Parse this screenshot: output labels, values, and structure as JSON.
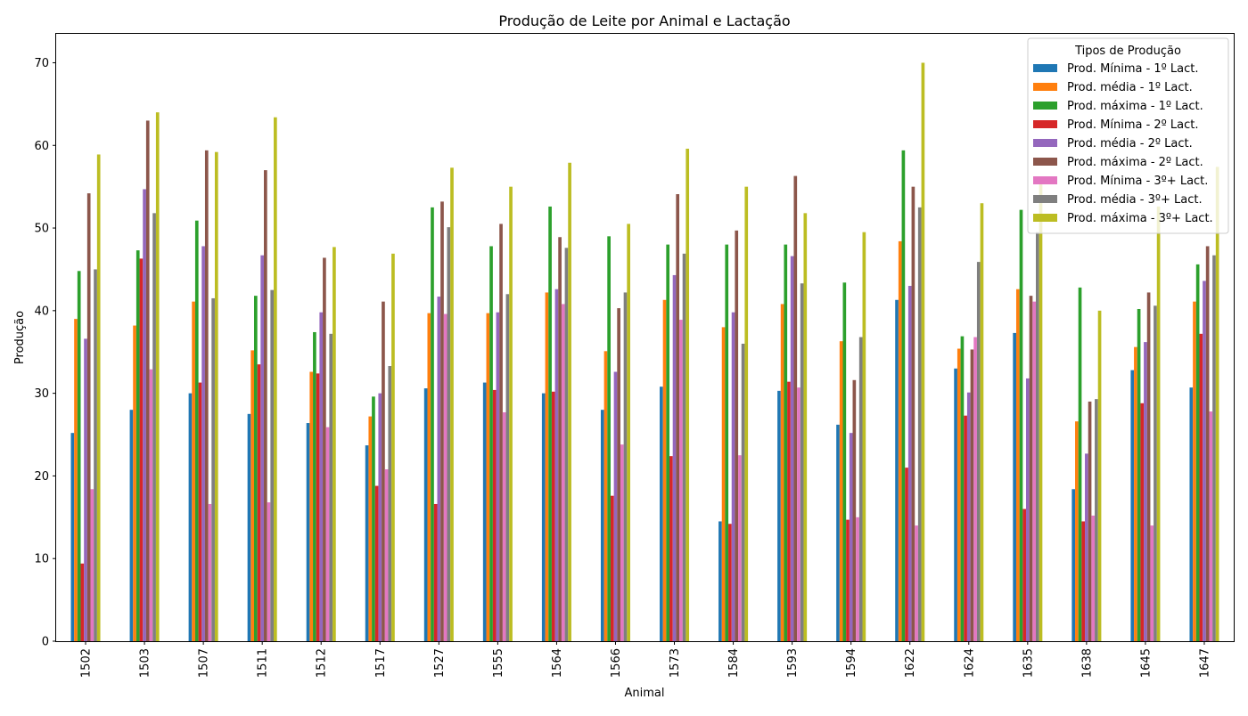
{
  "chart_data": {
    "type": "bar",
    "title": "Produção de Leite por Animal e Lactação",
    "xlabel": "Animal",
    "ylabel": "Produção",
    "ylim": [
      0,
      73.5
    ],
    "yticks": [
      0,
      10,
      20,
      30,
      40,
      50,
      60,
      70
    ],
    "grid": false,
    "legend": {
      "title": "Tipos de Produção",
      "placement": "top-right"
    },
    "categories": [
      "1502",
      "1503",
      "1507",
      "1511",
      "1512",
      "1517",
      "1527",
      "1555",
      "1564",
      "1566",
      "1573",
      "1584",
      "1593",
      "1594",
      "1622",
      "1624",
      "1635",
      "1638",
      "1645",
      "1647"
    ],
    "series": [
      {
        "name": "Prod. Mínima - 1º Lact.",
        "color": "#1f77b4",
        "values": [
          25.2,
          28.0,
          30.0,
          27.5,
          26.4,
          23.7,
          30.6,
          31.3,
          30.0,
          28.0,
          30.8,
          14.5,
          30.3,
          26.2,
          41.3,
          33.0,
          37.3,
          18.4,
          32.8,
          30.7
        ]
      },
      {
        "name": "Prod. média - 1º Lact.",
        "color": "#ff7f0e",
        "values": [
          39.0,
          38.2,
          41.1,
          35.2,
          32.6,
          27.2,
          39.7,
          39.7,
          42.2,
          35.1,
          41.3,
          38.0,
          40.8,
          36.3,
          48.4,
          35.4,
          42.6,
          26.6,
          35.6,
          41.1
        ]
      },
      {
        "name": "Prod. máxima - 1º Lact.",
        "color": "#2ca02c",
        "values": [
          44.8,
          47.3,
          50.9,
          41.8,
          37.4,
          29.6,
          52.5,
          47.8,
          52.6,
          49.0,
          48.0,
          48.0,
          48.0,
          43.4,
          59.4,
          36.9,
          52.2,
          42.8,
          40.2,
          45.6
        ]
      },
      {
        "name": "Prod. Mínima - 2º Lact.",
        "color": "#d62728",
        "values": [
          9.4,
          46.3,
          31.3,
          33.5,
          32.4,
          18.8,
          16.6,
          30.4,
          30.2,
          17.6,
          22.4,
          14.2,
          31.4,
          14.7,
          21.0,
          27.3,
          16.0,
          14.5,
          28.8,
          37.2
        ]
      },
      {
        "name": "Prod. média - 2º Lact.",
        "color": "#9467bd",
        "values": [
          36.6,
          54.7,
          47.8,
          46.7,
          39.8,
          30.0,
          41.7,
          39.8,
          42.6,
          32.6,
          44.3,
          39.8,
          46.6,
          25.2,
          43.0,
          30.1,
          31.8,
          22.7,
          36.2,
          43.6
        ]
      },
      {
        "name": "Prod. máxima - 2º Lact.",
        "color": "#8c564b",
        "values": [
          54.2,
          63.0,
          59.4,
          57.0,
          46.4,
          41.1,
          53.2,
          50.5,
          48.9,
          40.3,
          54.1,
          49.7,
          56.3,
          31.6,
          55.0,
          35.3,
          41.8,
          29.0,
          42.2,
          47.8
        ]
      },
      {
        "name": "Prod. Mínima - 3º+ Lact.",
        "color": "#e377c2",
        "values": [
          18.4,
          32.9,
          16.6,
          16.8,
          25.9,
          20.8,
          39.6,
          27.7,
          40.8,
          23.8,
          38.9,
          22.5,
          30.7,
          15.0,
          14.0,
          36.8,
          41.1,
          15.2,
          14.0,
          27.8
        ]
      },
      {
        "name": "Prod. média - 3º+ Lact.",
        "color": "#7f7f7f",
        "values": [
          45.0,
          51.8,
          41.5,
          42.5,
          37.2,
          33.3,
          50.1,
          42.0,
          47.6,
          42.2,
          46.9,
          36.0,
          43.3,
          36.8,
          52.5,
          45.9,
          49.5,
          29.3,
          40.6,
          46.7
        ]
      },
      {
        "name": "Prod. máxima - 3º+ Lact.",
        "color": "#bcbd22",
        "values": [
          58.9,
          64.0,
          59.2,
          63.4,
          47.7,
          46.9,
          57.3,
          55.0,
          57.9,
          50.5,
          59.6,
          55.0,
          51.8,
          49.5,
          70.0,
          53.0,
          55.4,
          40.0,
          52.6,
          57.4
        ]
      }
    ]
  }
}
